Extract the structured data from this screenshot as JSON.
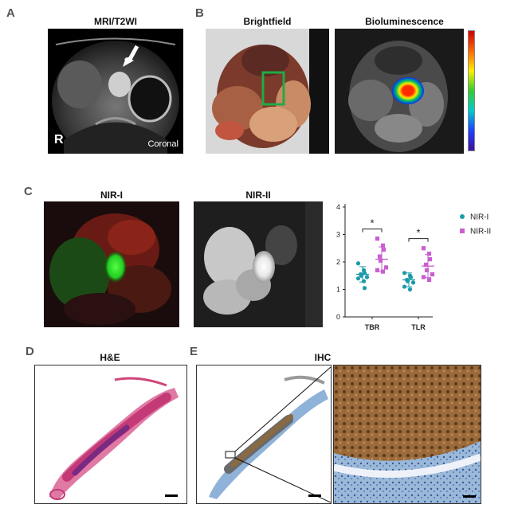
{
  "panels": {
    "a": {
      "label": "A",
      "title": "MRI/T2WI",
      "corner_left": "R",
      "corner_right": "Coronal"
    },
    "b": {
      "label": "B",
      "title_left": "Brightfield",
      "title_right": "Bioluminescence"
    },
    "c": {
      "label": "C",
      "title_left": "NIR-I",
      "title_right": "NIR-II"
    },
    "d": {
      "label": "D",
      "title": "H&E"
    },
    "e": {
      "label": "E",
      "title": "IHC"
    }
  },
  "chart_data": {
    "type": "scatter",
    "categories": [
      "TBR",
      "TLR"
    ],
    "ylim": [
      0,
      4
    ],
    "yticks": [
      "0",
      "1",
      "2",
      "3",
      "4"
    ],
    "significance": [
      "*",
      "*"
    ],
    "legend_position": "right",
    "series": [
      {
        "name": "NIR-I",
        "color": "#1b9aaa",
        "marker": "circle",
        "points": {
          "TBR": [
            1.95,
            1.7,
            1.6,
            1.55,
            1.5,
            1.45,
            1.4,
            1.3,
            1.05
          ],
          "TLR": [
            1.6,
            1.5,
            1.45,
            1.35,
            1.3,
            1.25,
            1.1,
            1.0
          ]
        },
        "mean": [
          1.55,
          1.35
        ],
        "sd": [
          0.28,
          0.25
        ]
      },
      {
        "name": "NIR-II",
        "color": "#c85fd0",
        "marker": "square",
        "points": {
          "TBR": [
            2.85,
            2.6,
            2.45,
            2.2,
            2.05,
            1.8,
            1.7,
            1.65
          ],
          "TLR": [
            2.5,
            2.3,
            2.1,
            1.9,
            1.7,
            1.55,
            1.45,
            1.35
          ]
        },
        "mean": [
          2.1,
          1.85
        ],
        "sd": [
          0.45,
          0.42
        ]
      }
    ]
  },
  "colors": {
    "nir1": "#1b9aaa",
    "nir2": "#c85fd0",
    "roi_box": "#22aa44",
    "he_stain": "#d0457a",
    "ihc_stain": "#a0522d"
  }
}
